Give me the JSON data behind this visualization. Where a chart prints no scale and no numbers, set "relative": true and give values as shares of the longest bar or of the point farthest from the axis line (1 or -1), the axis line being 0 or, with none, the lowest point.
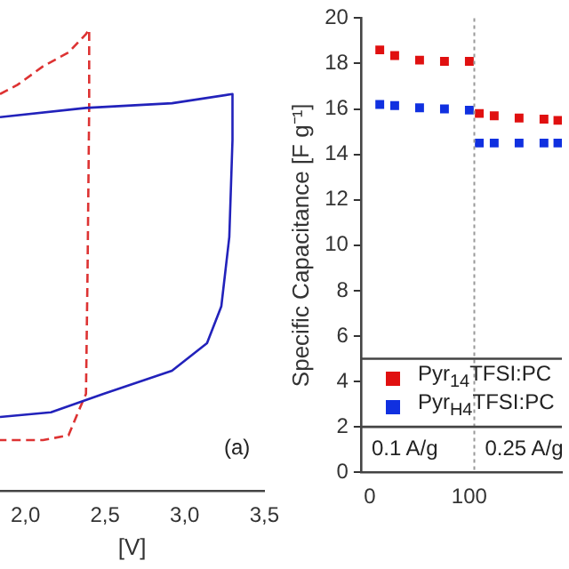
{
  "chart_data": [
    {
      "type": "line",
      "relative": true,
      "xlabel": "[V]",
      "tick_labels": "x",
      "xlim": [
        1.84,
        3.5
      ],
      "xticks": [
        {
          "value": 2,
          "label": "2,0"
        },
        {
          "value": 2.5,
          "label": "2,5"
        },
        {
          "value": 3,
          "label": "3,0"
        },
        {
          "value": 3.5,
          "label": "3,5"
        }
      ],
      "annotations": [
        "(a)"
      ],
      "grid": false,
      "legend": false,
      "series": [
        {
          "color": "#2222bb",
          "line_style": "solid",
          "x": [
            1.84,
            2.38,
            2.92,
            3.3,
            3.3,
            3.28,
            3.23,
            3.14,
            2.92,
            2.49,
            2.16,
            1.84
          ],
          "values": [
            0.81,
            0.83,
            0.84,
            0.86,
            0.76,
            0.55,
            0.4,
            0.32,
            0.26,
            0.21,
            0.17,
            0.16
          ]
        },
        {
          "color": "#dd3333",
          "line_style": "dashed",
          "x": [
            1.84,
            1.95,
            2.11,
            2.27,
            2.38,
            2.4,
            2.4,
            2.39,
            2.38,
            2.33,
            2.27,
            2.11,
            1.84
          ],
          "values": [
            0.86,
            0.88,
            0.92,
            0.95,
            0.99,
            1,
            0.83,
            0.48,
            0.21,
            0.17,
            0.12,
            0.11,
            0.11
          ]
        }
      ]
    },
    {
      "type": "scatter",
      "marker": "square",
      "ylabel": "Specific Capacitance [F g⁻¹]",
      "xlim": [
        -9,
        193
      ],
      "xticks": [
        0,
        100
      ],
      "ylim": [
        0,
        20
      ],
      "yticks": [
        0,
        2,
        4,
        6,
        8,
        10,
        12,
        14,
        16,
        18,
        20
      ],
      "grid": false,
      "legend": "bottom left",
      "ref_lines": [
        {
          "axis": "x",
          "value": 105,
          "line_style": "dotted",
          "color": "#999999"
        },
        {
          "axis": "y",
          "value": 5,
          "line_style": "solid",
          "color": "#444444"
        },
        {
          "axis": "y",
          "value": 2,
          "line_style": "solid",
          "color": "#444444"
        }
      ],
      "annotations": [
        "0.1 A/g",
        "0.25 A/g"
      ],
      "series": [
        {
          "name": "Pyr$_{14}$TFSI:PC",
          "color": "#e01010",
          "x": [
            10,
            25,
            50,
            75,
            100,
            110,
            125,
            150,
            175,
            189
          ],
          "values": [
            18.6,
            18.35,
            18.15,
            18.1,
            18.1,
            15.8,
            15.7,
            15.6,
            15.55,
            15.5
          ]
        },
        {
          "name": "Pyr$_{H4}$TFSI:PC",
          "color": "#1030e0",
          "x": [
            10,
            25,
            50,
            75,
            100,
            110,
            125,
            150,
            175,
            189
          ],
          "values": [
            16.2,
            16.15,
            16.05,
            16.0,
            15.95,
            14.5,
            14.5,
            14.5,
            14.5,
            14.5
          ]
        }
      ]
    }
  ]
}
